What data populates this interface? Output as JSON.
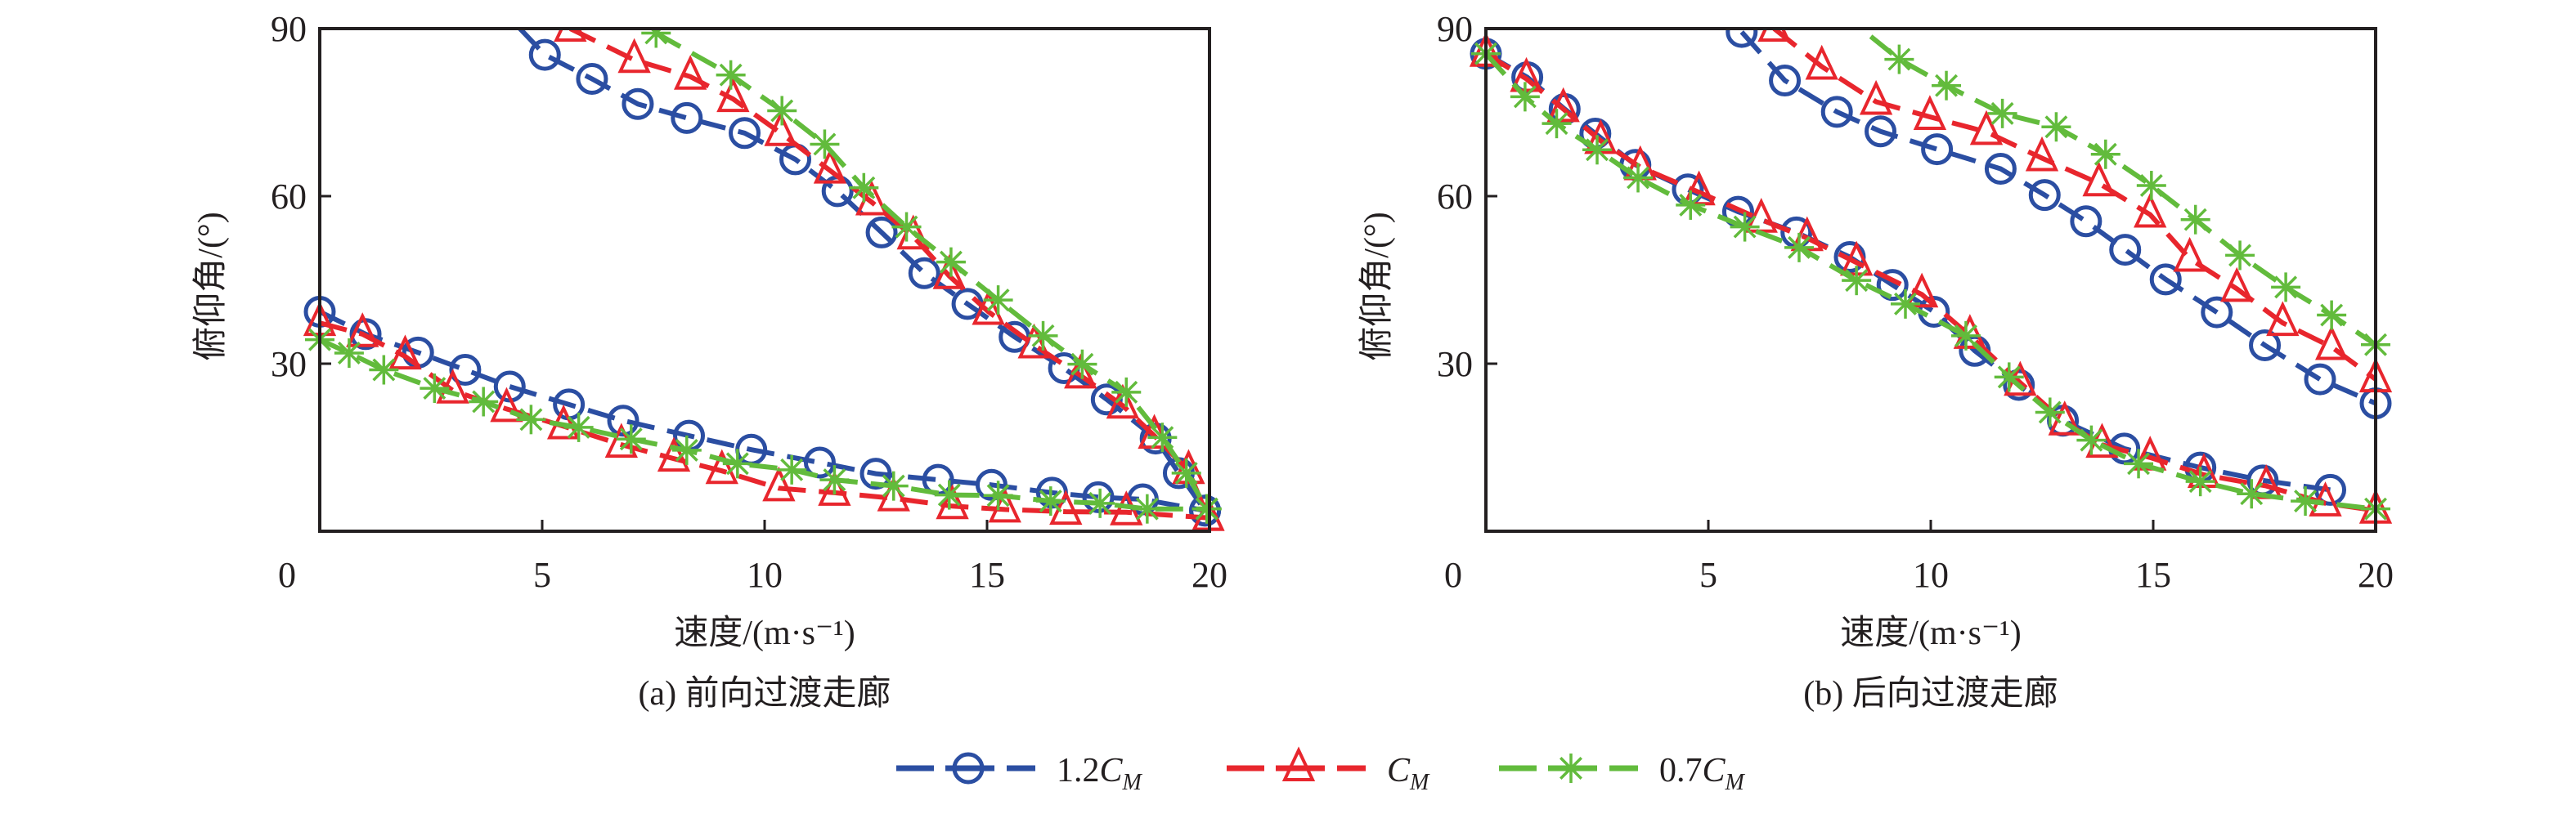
{
  "colors": {
    "s1": "#2b4ea2",
    "s2": "#e8262d",
    "s3": "#62bb3c",
    "axis": "#231f20"
  },
  "legend": [
    {
      "prefix": "1.2",
      "main": "C",
      "sub": "M",
      "marker": "circle",
      "color": "#2b4ea2"
    },
    {
      "prefix": "",
      "main": "C",
      "sub": "M",
      "marker": "triangle",
      "color": "#e8262d"
    },
    {
      "prefix": "0.7",
      "main": "C",
      "sub": "M",
      "marker": "asterisk",
      "color": "#62bb3c"
    }
  ],
  "chart_data": [
    {
      "type": "line",
      "caption": "(a) 前向过渡走廊",
      "xlabel": "速度/(m·s⁻¹)",
      "ylabel": "俯仰角/(°)",
      "xlim": [
        0,
        20
      ],
      "ylim": [
        0,
        90
      ],
      "xticks": [
        "0",
        "5",
        "10",
        "15",
        "20"
      ],
      "yticks": [
        "30",
        "60",
        "90"
      ],
      "legend_placement": "bottom",
      "series": [
        {
          "name": "1.2C_M",
          "marker": "circle",
          "color": "#2b4ea2",
          "branches": [
            [
              [
                4.5,
                90
              ],
              [
                5.06,
                85.3
              ],
              [
                6.12,
                81.0
              ],
              [
                7.15,
                76.5
              ],
              [
                8.25,
                74.0
              ],
              [
                9.55,
                71.3
              ],
              [
                10.69,
                66.6
              ],
              [
                11.64,
                60.9
              ],
              [
                12.63,
                53.5
              ],
              [
                13.59,
                46.2
              ],
              [
                14.56,
                40.7
              ],
              [
                15.62,
                34.8
              ],
              [
                16.73,
                29.2
              ],
              [
                17.69,
                23.6
              ],
              [
                18.79,
                16.6
              ],
              [
                19.31,
                10.4
              ],
              [
                19.9,
                3.7
              ]
            ],
            [
              [
                0,
                39.3
              ],
              [
                1.03,
                35.3
              ],
              [
                2.21,
                32.0
              ],
              [
                3.27,
                28.9
              ],
              [
                4.27,
                25.9
              ],
              [
                5.6,
                22.7
              ],
              [
                6.82,
                19.8
              ],
              [
                8.3,
                17.1
              ],
              [
                9.7,
                14.6
              ],
              [
                11.24,
                12.3
              ],
              [
                12.5,
                10.3
              ],
              [
                13.9,
                9.2
              ],
              [
                15.1,
                8.3
              ],
              [
                16.46,
                6.9
              ],
              [
                17.5,
                6.1
              ],
              [
                18.5,
                5.7
              ],
              [
                19.9,
                3.7
              ]
            ]
          ]
        },
        {
          "name": "C_M",
          "marker": "triangle",
          "color": "#e8262d",
          "branches": [
            [
              [
                5.63,
                90
              ],
              [
                7.07,
                84.4
              ],
              [
                8.33,
                81.4
              ],
              [
                9.29,
                77.4
              ],
              [
                10.36,
                71.3
              ],
              [
                11.47,
                64.6
              ],
              [
                12.41,
                58.9
              ],
              [
                13.34,
                52.8
              ],
              [
                14.15,
                45.7
              ],
              [
                15.03,
                39.3
              ],
              [
                16.06,
                33.3
              ],
              [
                17.1,
                27.9
              ],
              [
                18.05,
                22.5
              ],
              [
                18.76,
                17.1
              ],
              [
                19.53,
                10.8
              ],
              [
                19.97,
                2.4
              ]
            ],
            [
              [
                0,
                37.3
              ],
              [
                0.96,
                35.3
              ],
              [
                1.92,
                31.3
              ],
              [
                2.99,
                25.2
              ],
              [
                4.2,
                21.9
              ],
              [
                5.48,
                18.8
              ],
              [
                6.78,
                15.5
              ],
              [
                7.96,
                13.0
              ],
              [
                9.04,
                10.8
              ],
              [
                10.32,
                7.7
              ],
              [
                11.57,
                6.9
              ],
              [
                12.9,
                5.9
              ],
              [
                14.22,
                4.5
              ],
              [
                15.4,
                3.9
              ],
              [
                16.77,
                3.5
              ],
              [
                18.13,
                3.4
              ],
              [
                19.97,
                2.4
              ]
            ]
          ]
        },
        {
          "name": "0.7C_M",
          "marker": "asterisk",
          "color": "#62bb3c",
          "branches": [
            [
              [
                7.56,
                89.2
              ],
              [
                9.24,
                81.7
              ],
              [
                10.39,
                75.3
              ],
              [
                11.35,
                69.3
              ],
              [
                12.23,
                61.5
              ],
              [
                13.19,
                54.5
              ],
              [
                14.19,
                48.2
              ],
              [
                15.25,
                41.4
              ],
              [
                16.26,
                35.0
              ],
              [
                17.14,
                29.9
              ],
              [
                18.13,
                24.9
              ],
              [
                18.94,
                16.8
              ],
              [
                19.48,
                10.4
              ],
              [
                19.94,
                4.0
              ]
            ],
            [
              [
                0,
                34.3
              ],
              [
                0.66,
                31.9
              ],
              [
                1.44,
                28.9
              ],
              [
                2.58,
                25.6
              ],
              [
                3.68,
                23.2
              ],
              [
                4.75,
                20.0
              ],
              [
                5.82,
                18.6
              ],
              [
                7.0,
                16.5
              ],
              [
                8.25,
                14.5
              ],
              [
                9.39,
                12.1
              ],
              [
                10.61,
                11.0
              ],
              [
                11.57,
                9.2
              ],
              [
                12.9,
                8.1
              ],
              [
                14.15,
                6.5
              ],
              [
                15.25,
                6.4
              ],
              [
                16.43,
                5.4
              ],
              [
                17.54,
                5.0
              ],
              [
                18.6,
                4.0
              ],
              [
                19.94,
                4.0
              ]
            ]
          ]
        }
      ]
    },
    {
      "type": "line",
      "caption": "(b) 后向过渡走廊",
      "xlabel": "速度/(m·s⁻¹)",
      "ylabel": "俯仰角/(°)",
      "xlim": [
        0,
        20
      ],
      "ylim": [
        0,
        90
      ],
      "xticks": [
        "0",
        "5",
        "10",
        "15",
        "20"
      ],
      "yticks": [
        "30",
        "60",
        "90"
      ],
      "legend_placement": "bottom",
      "series": [
        {
          "name": "1.2C_M",
          "marker": "circle",
          "color": "#2b4ea2",
          "branches": [
            [
              [
                5.75,
                89.4
              ],
              [
                6.72,
                80.7
              ],
              [
                7.89,
                75.1
              ],
              [
                8.87,
                71.6
              ],
              [
                10.14,
                68.4
              ],
              [
                11.57,
                64.9
              ],
              [
                12.56,
                60.2
              ],
              [
                13.49,
                55.5
              ],
              [
                14.37,
                50.4
              ],
              [
                15.28,
                45.1
              ],
              [
                16.43,
                39.2
              ],
              [
                17.51,
                33.3
              ],
              [
                18.75,
                27.2
              ],
              [
                20,
                22.9
              ]
            ],
            [
              [
                0,
                85.5
              ],
              [
                0.93,
                81.3
              ],
              [
                1.77,
                75.6
              ],
              [
                2.46,
                71.2
              ],
              [
                3.36,
                65.6
              ],
              [
                4.54,
                61.2
              ],
              [
                5.67,
                57.2
              ],
              [
                6.98,
                53.5
              ],
              [
                8.18,
                49.1
              ],
              [
                9.14,
                44.1
              ],
              [
                10.07,
                39.3
              ],
              [
                10.99,
                32.3
              ],
              [
                11.98,
                26.2
              ],
              [
                12.97,
                19.8
              ],
              [
                14.35,
                14.8
              ],
              [
                16.06,
                11.4
              ],
              [
                17.46,
                9.1
              ],
              [
                18.98,
                7.4
              ]
            ]
          ]
        },
        {
          "name": "C_M",
          "marker": "triangle",
          "color": "#e8262d",
          "branches": [
            [
              [
                6.48,
                90
              ],
              [
                7.55,
                83.2
              ],
              [
                8.77,
                76.9
              ],
              [
                9.98,
                74.2
              ],
              [
                11.25,
                71.5
              ],
              [
                12.5,
                66.8
              ],
              [
                13.78,
                62.3
              ],
              [
                14.93,
                56.7
              ],
              [
                15.82,
                48.8
              ],
              [
                16.88,
                43.4
              ],
              [
                17.91,
                37.3
              ],
              [
                19.01,
                33.0
              ],
              [
                20,
                27.2
              ]
            ],
            [
              [
                0,
                85.5
              ],
              [
                0.91,
                81.0
              ],
              [
                1.74,
                75.6
              ],
              [
                2.58,
                69.9
              ],
              [
                3.47,
                65.2
              ],
              [
                4.79,
                60.7
              ],
              [
                6.19,
                55.8
              ],
              [
                7.22,
                52.5
              ],
              [
                8.33,
                48.1
              ],
              [
                9.8,
                42.4
              ],
              [
                10.88,
                35.0
              ],
              [
                12.01,
                26.6
              ],
              [
                13.01,
                19.5
              ],
              [
                13.85,
                15.5
              ],
              [
                14.93,
                13.2
              ],
              [
                16.14,
                10.1
              ],
              [
                17.54,
                8.1
              ],
              [
                18.87,
                5.0
              ],
              [
                20,
                3.7
              ]
            ]
          ]
        },
        {
          "name": "0.7C_M",
          "marker": "asterisk",
          "color": "#62bb3c",
          "branches": [
            [
              [
                8.65,
                88.6
              ],
              [
                9.29,
                84.5
              ],
              [
                10.35,
                79.8
              ],
              [
                11.61,
                74.8
              ],
              [
                12.82,
                72.4
              ],
              [
                13.93,
                67.5
              ],
              [
                14.96,
                61.9
              ],
              [
                15.95,
                55.8
              ],
              [
                16.95,
                49.4
              ],
              [
                17.98,
                43.7
              ],
              [
                19.01,
                38.7
              ],
              [
                20,
                33.4
              ]
            ],
            [
              [
                0,
                85.5
              ],
              [
                0.88,
                77.8
              ],
              [
                1.59,
                73.0
              ],
              [
                2.5,
                68.3
              ],
              [
                3.42,
                63.3
              ],
              [
                4.6,
                58.4
              ],
              [
                5.82,
                54.5
              ],
              [
                7.04,
                50.8
              ],
              [
                8.33,
                44.9
              ],
              [
                9.43,
                40.7
              ],
              [
                10.79,
                35.0
              ],
              [
                11.76,
                27.6
              ],
              [
                12.68,
                21.3
              ],
              [
                13.61,
                16.3
              ],
              [
                14.67,
                12.1
              ],
              [
                16.06,
                8.9
              ],
              [
                17.21,
                6.7
              ],
              [
                18.42,
                5.4
              ],
              [
                20,
                4.0
              ]
            ]
          ]
        }
      ]
    }
  ]
}
